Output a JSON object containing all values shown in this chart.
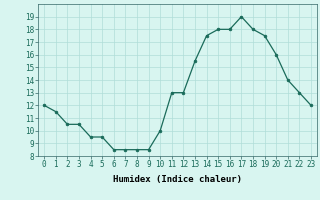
{
  "x": [
    0,
    1,
    2,
    3,
    4,
    5,
    6,
    7,
    8,
    9,
    10,
    11,
    12,
    13,
    14,
    15,
    16,
    17,
    18,
    19,
    20,
    21,
    22,
    23
  ],
  "y": [
    12,
    11.5,
    10.5,
    10.5,
    9.5,
    9.5,
    8.5,
    8.5,
    8.5,
    8.5,
    10,
    13,
    13,
    15.5,
    17.5,
    18,
    18,
    19,
    18,
    17.5,
    16,
    14,
    13,
    12
  ],
  "line_color": "#1a6b5a",
  "marker_color": "#1a6b5a",
  "bg_color": "#d8f5f0",
  "grid_color": "#b0ddd8",
  "xlabel": "Humidex (Indice chaleur)",
  "ylim": [
    8,
    20
  ],
  "xlim": [
    -0.5,
    23.5
  ],
  "yticks": [
    8,
    9,
    10,
    11,
    12,
    13,
    14,
    15,
    16,
    17,
    18,
    19
  ],
  "xticks": [
    0,
    1,
    2,
    3,
    4,
    5,
    6,
    7,
    8,
    9,
    10,
    11,
    12,
    13,
    14,
    15,
    16,
    17,
    18,
    19,
    20,
    21,
    22,
    23
  ],
  "label_fontsize": 6.5,
  "tick_fontsize": 5.5
}
